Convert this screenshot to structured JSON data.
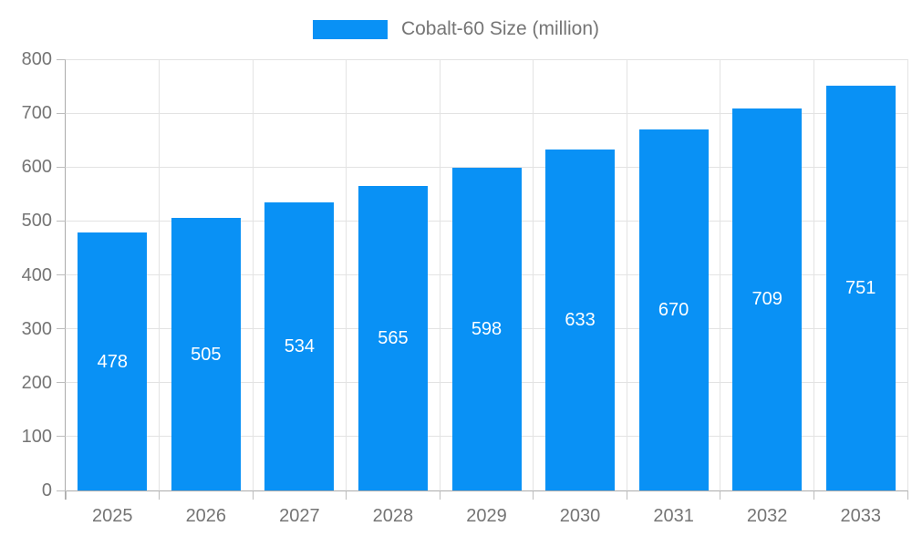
{
  "chart_data": {
    "type": "bar",
    "title": "",
    "legend": "Cobalt-60 Size (million)",
    "legend_position": "top",
    "categories": [
      "2025",
      "2026",
      "2027",
      "2028",
      "2029",
      "2030",
      "2031",
      "2032",
      "2033"
    ],
    "values": [
      478,
      505,
      534,
      565,
      598,
      633,
      670,
      709,
      751
    ],
    "xlabel": "",
    "ylabel": "",
    "ylim": [
      0,
      800
    ],
    "y_ticks": [
      0,
      100,
      200,
      300,
      400,
      500,
      600,
      700,
      800
    ],
    "grid": true,
    "value_labels": "white, centered inside bars",
    "colors": {
      "bar": "#0991F5",
      "grid": "#E3E3E3",
      "axis": "#ABABAB",
      "tick": "#BDBDBD",
      "axis_label": "#757575",
      "value_label": "#FFFFFF",
      "background": "#FFFFFF"
    }
  }
}
